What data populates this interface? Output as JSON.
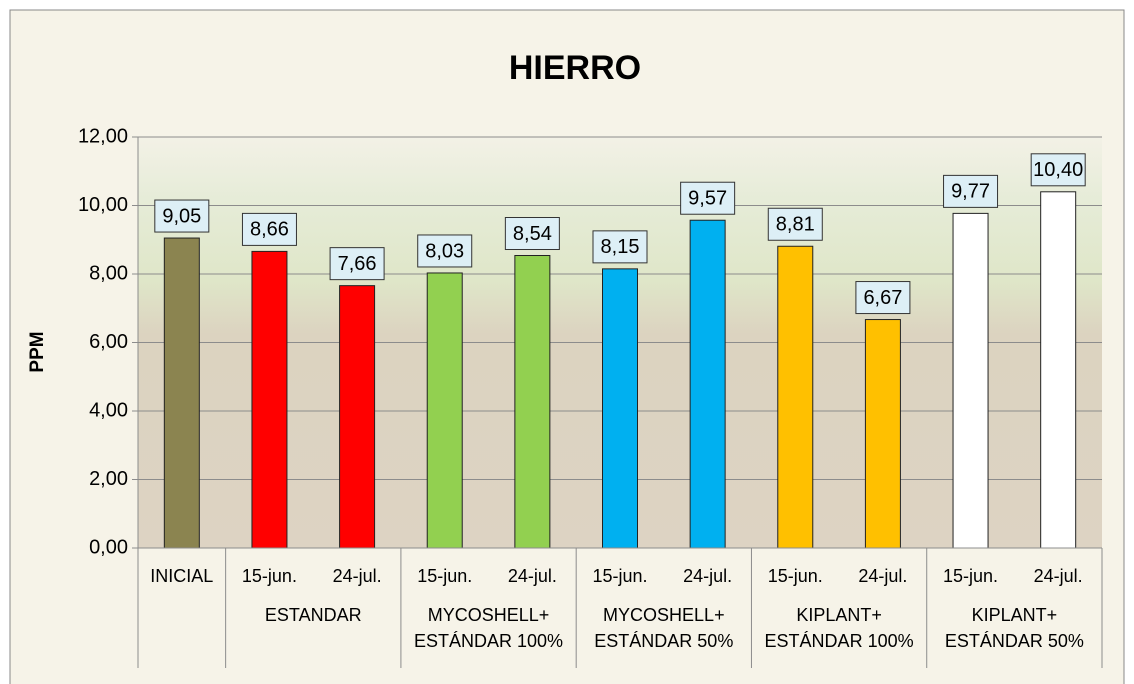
{
  "chart_data": {
    "type": "bar",
    "title": "HIERRO",
    "y_label": "PPM",
    "ylim": [
      0,
      12
    ],
    "yticks": [
      {
        "value": 0,
        "label": "0,00"
      },
      {
        "value": 2,
        "label": "2,00"
      },
      {
        "value": 4,
        "label": "4,00"
      },
      {
        "value": 6,
        "label": "6,00"
      },
      {
        "value": 8,
        "label": "8,00"
      },
      {
        "value": 10,
        "label": "10,00"
      },
      {
        "value": 12,
        "label": "12,00"
      }
    ],
    "grid": true,
    "groups": [
      {
        "name": null,
        "color": "#8b8450",
        "categories": [
          "INICIAL"
        ],
        "values": [
          9.05
        ],
        "value_labels": [
          "9,05"
        ]
      },
      {
        "name": "ESTANDAR",
        "color": "#ff0000",
        "categories": [
          "15-jun.",
          "24-jul."
        ],
        "values": [
          8.66,
          7.66
        ],
        "value_labels": [
          "8,66",
          "7,66"
        ]
      },
      {
        "name": "MYCOSHELL+\nESTÁNDAR 100%",
        "color": "#92d050",
        "categories": [
          "15-jun.",
          "24-jul."
        ],
        "values": [
          8.03,
          8.54
        ],
        "value_labels": [
          "8,03",
          "8,54"
        ]
      },
      {
        "name": "MYCOSHELL+\nESTÁNDAR 50%",
        "color": "#00b0f0",
        "categories": [
          "15-jun.",
          "24-jul."
        ],
        "values": [
          8.15,
          9.57
        ],
        "value_labels": [
          "8,15",
          "9,57"
        ]
      },
      {
        "name": "KIPLANT+\nESTÁNDAR 100%",
        "color": "#ffc000",
        "categories": [
          "15-jun.",
          "24-jul."
        ],
        "values": [
          8.81,
          6.67
        ],
        "value_labels": [
          "8,81",
          "6,67"
        ]
      },
      {
        "name": "KIPLANT+\nESTÁNDAR 50%",
        "color": "#ffffff",
        "categories": [
          "15-jun.",
          "24-jul."
        ],
        "values": [
          9.77,
          10.4
        ],
        "value_labels": [
          "9,77",
          "10,40"
        ]
      }
    ]
  }
}
